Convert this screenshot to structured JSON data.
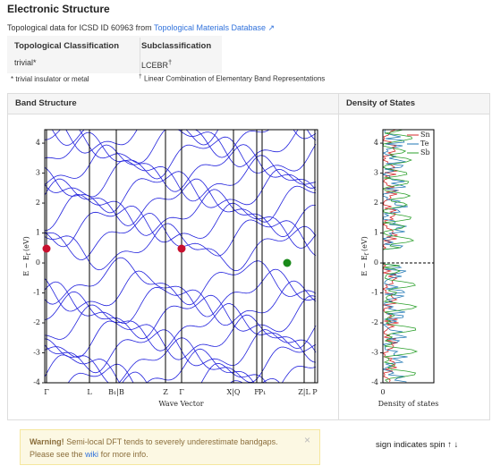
{
  "header": {
    "title": "Electronic Structure",
    "intro": "Topological data for ICSD ID 60963 from",
    "link": "Topological Materials Database"
  },
  "table": {
    "headers": [
      "Topological Classification",
      "Subclassification"
    ],
    "values": [
      "trivial*",
      "LCEBR"
    ],
    "dagger": "†"
  },
  "notes": {
    "star": "* trivial insulator or metal",
    "dagger": "†",
    "dagger_text": "Linear Combination of Elementary Band Representations"
  },
  "panels": [
    "Band Structure",
    "Density of States"
  ],
  "band_chart": {
    "type": "line",
    "ylabel": "E − E",
    "ylabel_sub": "f",
    "ylabel_unit": "(eV)",
    "xlabel": "Wave Vector",
    "ylim": [
      -4,
      4.45
    ],
    "yticks": [
      -4,
      -3,
      -2,
      -1,
      0,
      1,
      2,
      3,
      4
    ],
    "kpoints": [
      "Γ",
      "L",
      "B₁|B",
      "Z",
      "Γ",
      "X|Q",
      "F",
      "P₁",
      "Z|L",
      "P"
    ]
  },
  "dos_chart": {
    "type": "line",
    "ylabel": "E − E",
    "ylabel_sub": "f",
    "ylabel_unit": "(eV)",
    "xlabel": "Density of states",
    "ylim": [
      -4,
      4.45
    ],
    "yticks": [
      -4,
      -3,
      -2,
      -1,
      0,
      1,
      2,
      3,
      4
    ],
    "xticks": [
      0
    ],
    "series": [
      {
        "name": "Sn",
        "color": "#d62728"
      },
      {
        "name": "Te",
        "color": "#1f77b4"
      },
      {
        "name": "Sb",
        "color": "#2ca02c"
      }
    ]
  },
  "warning": {
    "strong": "Warning!",
    "text": "Semi-local DFT tends to severely underestimate bandgaps.",
    "text2": "Please see the",
    "link": "wiki",
    "text3": "for more info.",
    "close": "×"
  },
  "spin_note": "sign indicates spin ↑ ↓"
}
